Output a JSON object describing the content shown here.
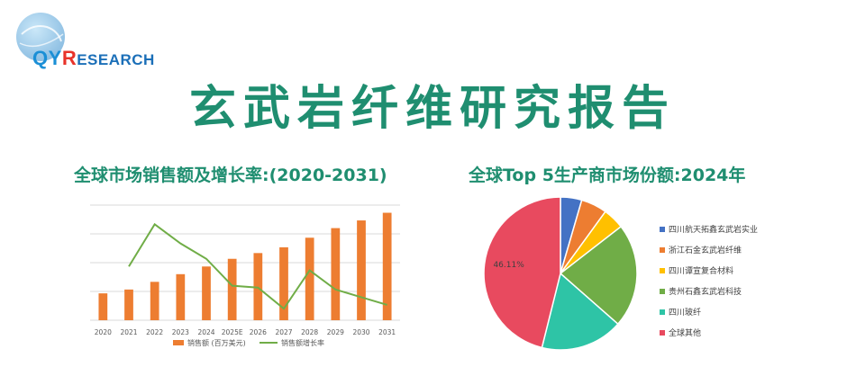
{
  "logo": {
    "q": "Q",
    "y": "Y",
    "r": "R",
    "rest": "ESEARCH",
    "colors": {
      "q": "#1b8fd6",
      "y": "#1b8fd6",
      "r": "#e8332a",
      "rest": "#1b6fb8"
    }
  },
  "title": "玄武岩纤维研究报告",
  "left_chart_title": "全球市场销售额及增长率:(2020-2031)",
  "right_chart_title": "全球Top 5生产商市场份额:2024年",
  "colors": {
    "accent": "#1f8e70",
    "bar": "#ed7d31",
    "line": "#70ad47",
    "grid": "#d9d9d9"
  },
  "chart_data": [
    {
      "type": "bar",
      "title": "全球市场销售额及增长率:(2020-2031)",
      "categories": [
        "2020",
        "2021",
        "2022",
        "2023",
        "2024",
        "2025E",
        "2026",
        "2027",
        "2028",
        "2029",
        "2030",
        "2031"
      ],
      "series": [
        {
          "name": "销售额 (百万美元)",
          "type": "bar",
          "values": [
            28,
            32,
            40,
            48,
            56,
            64,
            70,
            76,
            86,
            96,
            104,
            112
          ]
        },
        {
          "name": "销售额增长率",
          "type": "line",
          "values": [
            null,
            14.0,
            25.0,
            20.0,
            16.0,
            9.0,
            8.5,
            3.0,
            13.0,
            8.0,
            6.0,
            4.0
          ]
        }
      ],
      "ylim": [
        0,
        120
      ],
      "ylim_secondary": [
        0,
        30
      ],
      "grid": true,
      "legend": "bottom"
    },
    {
      "type": "pie",
      "title": "全球Top 5生产商市场份额:2024年",
      "labels": [
        "四川航天拓鑫玄武岩实业",
        "浙江石金玄武岩纤维",
        "四川谭宣复合材料",
        "贵州石鑫玄武岩科技",
        "四川玻纤",
        "全球其他"
      ],
      "values": [
        4.5,
        5.5,
        4.5,
        22.0,
        17.4,
        46.11
      ],
      "colors": [
        "#4472c4",
        "#ed7d31",
        "#ffc000",
        "#70ad47",
        "#2ec4a6",
        "#e84a5f"
      ],
      "data_labels": [
        "",
        "",
        "",
        "",
        "",
        "46.11%"
      ],
      "legend": "right"
    }
  ]
}
